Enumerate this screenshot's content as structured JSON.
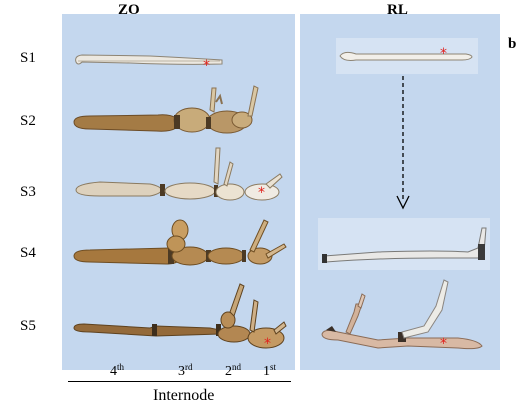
{
  "figure": {
    "panel_letter": "b",
    "col_headers": {
      "left": "ZO",
      "right": "RL"
    },
    "stage_labels": [
      "S1",
      "S2",
      "S3",
      "S4",
      "S5"
    ],
    "internode_ticks": [
      {
        "num": "4",
        "sup": "th"
      },
      {
        "num": "3",
        "sup": "rd"
      },
      {
        "num": "2",
        "sup": "nd"
      },
      {
        "num": "1",
        "sup": "st"
      }
    ],
    "axis_title": "Internode",
    "marker": "*",
    "colors": {
      "panel_bg": "#c4d7ee",
      "marker": "#e0201c",
      "stem_light": "#e8e4dc",
      "stem_brown": "#9a7240",
      "stem_dark": "#6e4f2c"
    }
  }
}
